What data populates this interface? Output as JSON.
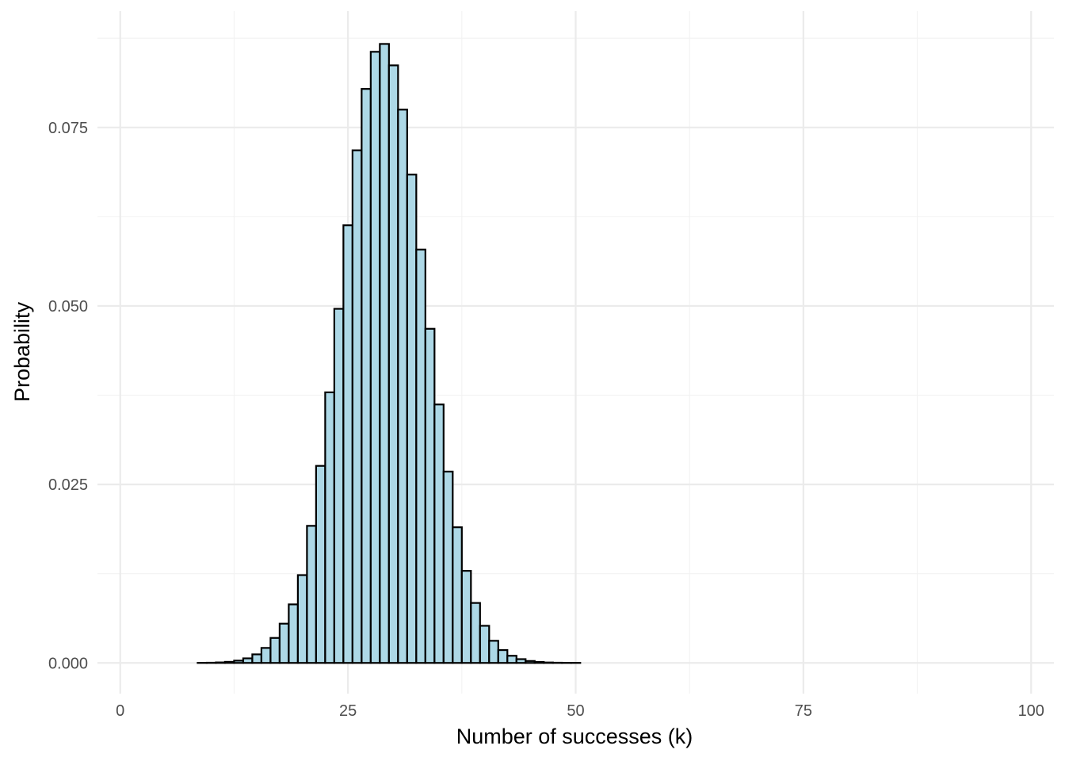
{
  "chart_data": {
    "type": "bar",
    "title": "",
    "xlabel": "Number of successes (k)",
    "ylabel": "Probability",
    "xlim": [
      -2.5,
      102.5
    ],
    "ylim": [
      -0.0043,
      0.0913
    ],
    "x_ticks": [
      0,
      25,
      50,
      75,
      100
    ],
    "x_tick_labels": [
      "0",
      "25",
      "50",
      "75",
      "100"
    ],
    "y_ticks": [
      0,
      0.025,
      0.05,
      0.075
    ],
    "y_tick_labels": [
      "0.000",
      "0.025",
      "0.050",
      "0.075"
    ],
    "grid": true,
    "colors": {
      "bar_fill": "#add8e6",
      "bar_outline": "#000000",
      "grid": "#ebebeb"
    },
    "x": [
      0,
      1,
      2,
      3,
      4,
      5,
      6,
      7,
      8,
      9,
      10,
      11,
      12,
      13,
      14,
      15,
      16,
      17,
      18,
      19,
      20,
      21,
      22,
      23,
      24,
      25,
      26,
      27,
      28,
      29,
      30,
      31,
      32,
      33,
      34,
      35,
      36,
      37,
      38,
      39,
      40,
      41,
      42,
      43,
      44,
      45,
      46,
      47,
      48,
      49,
      50,
      51,
      52,
      53,
      54,
      55,
      56,
      57,
      58,
      59,
      60,
      61,
      62,
      63,
      64,
      65,
      66,
      67,
      68,
      69,
      70,
      71,
      72,
      73,
      74,
      75,
      76,
      77,
      78,
      79,
      80,
      81,
      82,
      83,
      84,
      85,
      86,
      87,
      88,
      89,
      90,
      91,
      92,
      93,
      94,
      95,
      96,
      97,
      98,
      99,
      100
    ],
    "values": [
      0,
      0,
      0,
      0,
      0,
      0,
      0,
      0,
      0,
      1e-05,
      3e-05,
      7e-05,
      0.00015,
      0.00032,
      0.00064,
      0.0012,
      0.0021,
      0.0035,
      0.0055,
      0.0082,
      0.0123,
      0.0192,
      0.0276,
      0.0379,
      0.0496,
      0.0613,
      0.0718,
      0.0804,
      0.0856,
      0.0867,
      0.0837,
      0.0775,
      0.0684,
      0.0579,
      0.0468,
      0.0362,
      0.0268,
      0.019,
      0.0129,
      0.0084,
      0.0052,
      0.0031,
      0.0018,
      0.001,
      0.00053,
      0.00027,
      0.00013,
      6e-05,
      3e-05,
      1e-05,
      1e-05,
      0,
      0,
      0,
      0,
      0,
      0,
      0,
      0,
      0,
      0,
      0,
      0,
      0,
      0,
      0,
      0,
      0,
      0,
      0,
      0,
      0,
      0,
      0,
      0,
      0,
      0,
      0,
      0,
      0,
      0,
      0,
      0,
      0,
      0,
      0,
      0,
      0,
      0,
      0,
      0,
      0,
      0,
      0,
      0,
      0,
      0,
      0,
      0,
      0,
      0
    ]
  }
}
